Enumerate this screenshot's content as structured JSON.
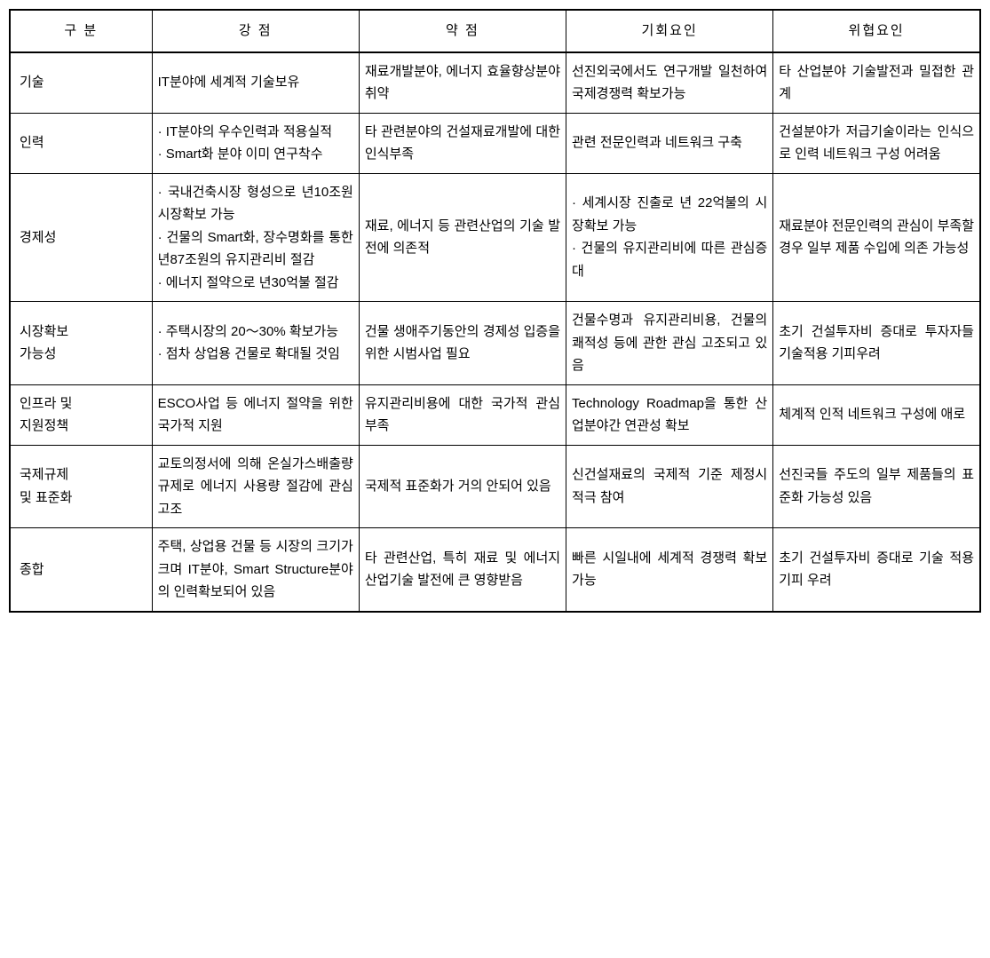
{
  "table": {
    "headers": {
      "col1": "구 분",
      "col2": "강 점",
      "col3": "약 점",
      "col4": "기회요인",
      "col5": "위협요인"
    },
    "rows": [
      {
        "category": "기술",
        "strength": "IT분야에 세계적 기술보유",
        "weakness": "재료개발분야, 에너지 효율향상분야 취약",
        "opportunity": "선진외국에서도 연구개발 일천하여 국제경쟁력 확보가능",
        "threat": "타 산업분야 기술발전과 밀접한 관계"
      },
      {
        "category": "인력",
        "strength": "· IT분야의 우수인력과 적용실적\n· Smart화 분야 이미 연구착수",
        "weakness": "타 관련분야의 건설재료개발에 대한 인식부족",
        "opportunity": "관련 전문인력과 네트워크 구축",
        "threat": "건설분야가 저급기술이라는 인식으로 인력 네트워크 구성 어려움"
      },
      {
        "category": "경제성",
        "strength": "· 국내건축시장 형성으로 년10조원 시장확보 가능\n· 건물의 Smart화, 장수명화를 통한 년87조원의 유지관리비 절감\n· 에너지 절약으로 년30억불 절감",
        "weakness": "재료, 에너지 등 관련산업의 기술 발전에 의존적",
        "opportunity": "· 세계시장 진출로 년 22억불의 시장확보 가능\n· 건물의 유지관리비에 따른 관심증대",
        "threat": "재료분야 전문인력의 관심이 부족할 경우 일부 제품 수입에 의존 가능성"
      },
      {
        "category": "시장확보\n가능성",
        "strength": "· 주택시장의 20～30% 확보가능\n· 점차 상업용 건물로 확대될 것임",
        "weakness": "건물 생애주기동안의 경제성 입증을 위한 시범사업 필요",
        "opportunity": "건물수명과 유지관리비용, 건물의 쾌적성 등에 관한 관심 고조되고 있음",
        "threat": "초기 건설투자비 증대로 투자자들 기술적용 기피우려"
      },
      {
        "category": "인프라 및\n지원정책",
        "strength": "ESCO사업 등 에너지 절약을 위한 국가적 지원",
        "weakness": "유지관리비용에 대한 국가적 관심 부족",
        "opportunity": "Technology Roadmap을 통한 산업분야간 연관성 확보",
        "threat": "체계적 인적 네트워크 구성에 애로"
      },
      {
        "category": "국제규제\n및 표준화",
        "strength": "교토의정서에 의해 온실가스배출량 규제로 에너지 사용량 절감에 관심고조",
        "weakness": "국제적 표준화가 거의 안되어 있음",
        "opportunity": "신건설재료의 국제적 기준 제정시 적극 참여",
        "threat": "선진국들 주도의 일부 제품들의 표준화 가능성 있음"
      },
      {
        "category": "종합",
        "strength": "주택, 상업용 건물 등 시장의 크기가 크며 IT분야, Smart Structure분야의 인력확보되어 있음",
        "weakness": "타 관련산업, 특히 재료 및 에너지 산업기술 발전에 큰 영향받음",
        "opportunity": "빠른 시일내에 세계적 경쟁력 확보가능",
        "threat": "초기 건설투자비 증대로 기술 적용 기피 우려"
      }
    ]
  }
}
